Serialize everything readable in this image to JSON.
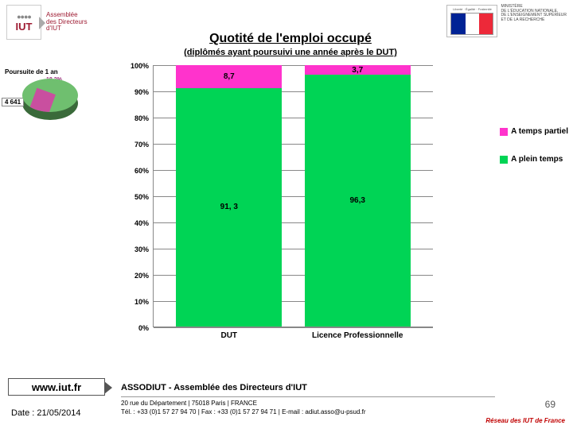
{
  "logo": {
    "iut_text": "IUT",
    "assemblee_lines": "Assemblée\ndes Directeurs\nd'IUT",
    "ministere_text": "MINISTÈRE\nDE L'ÉDUCATION NATIONALE,\nDE L'ENSEIGNEMENT SUPÉRIEUR\nET DE LA RECHERCHE"
  },
  "title": {
    "main": "Quotité de l'emploi occupé",
    "sub": "(diplômés ayant poursuivi une année après le DUT)"
  },
  "side": {
    "poursuite": "Poursuite de 1 an",
    "pie_pct": "18,2%",
    "pie_count": "4 641"
  },
  "chart": {
    "type": "stacked-bar",
    "y_ticks": [
      "0%",
      "10%",
      "20%",
      "30%",
      "40%",
      "50%",
      "60%",
      "70%",
      "80%",
      "90%",
      "100%"
    ],
    "categories": [
      "DUT",
      "Licence Professionnelle"
    ],
    "series": [
      {
        "name": "A temps partiel",
        "color": "#ff33cc"
      },
      {
        "name": "A plein temps",
        "color": "#00d455"
      }
    ],
    "data": {
      "partiel": [
        8.7,
        3.7
      ],
      "plein": [
        91.3,
        96.3
      ]
    },
    "labels_partiel": [
      "8,7",
      "3,7"
    ],
    "labels_plein": [
      "91, 3",
      "96,3"
    ],
    "bar_width_pct": 38,
    "bar_positions_pct": [
      8,
      54
    ],
    "background": "#ffffff",
    "grid_color": "#888888"
  },
  "legend": {
    "items": [
      {
        "label": "A temps partiel",
        "color": "#ff33cc"
      },
      {
        "label": "A plein temps",
        "color": "#00d455"
      }
    ]
  },
  "footer": {
    "website": "www.iut.fr",
    "date": "Date : 21/05/2014",
    "assodiut": "ASSODIUT - Assemblée des Directeurs d'IUT",
    "addr1": "20 rue du Département | 75018 Paris | FRANCE",
    "addr2": "Tél. : +33 (0)1 57 27 94 70 | Fax : +33 (0)1 57 27 94 71 | E-mail : adiut.asso@u-psud.fr",
    "reseau": "Réseau des IUT de France",
    "page_num": "69"
  }
}
